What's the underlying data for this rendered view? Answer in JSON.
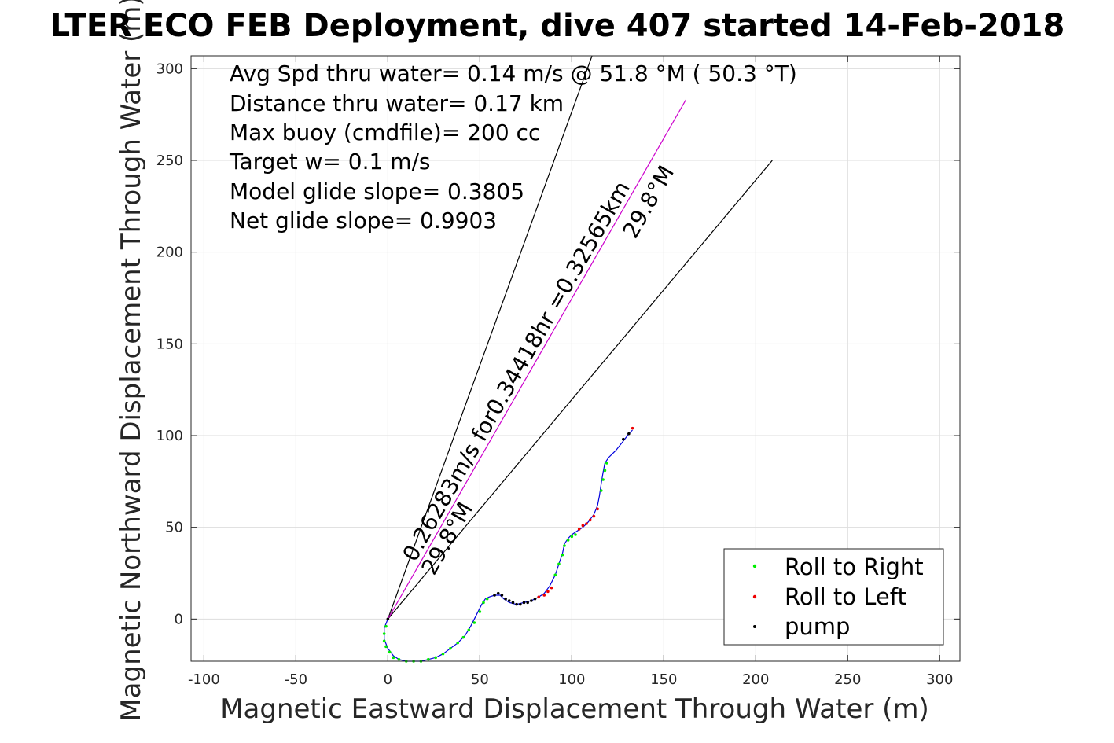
{
  "chart_data": {
    "type": "scatter",
    "title": "LTER ECO FEB Deployment, dive 407 started 14-Feb-2018",
    "xlabel": "Magnetic Eastward Displacement Through Water (m)",
    "ylabel": "Magnetic Northward Displacement Through Water (m)",
    "xlim": [
      -107,
      311
    ],
    "ylim": [
      -23,
      307
    ],
    "xticks": [
      -100,
      -50,
      0,
      50,
      100,
      150,
      200,
      250,
      300
    ],
    "yticks": [
      0,
      50,
      100,
      150,
      200,
      250,
      300
    ],
    "grid": true,
    "legend_position": "bottom-right",
    "annotations": [
      "Avg Spd thru water=  0.14 m/s @  51.8 °M ( 50.3 °T)",
      "Distance thru water=  0.17 km",
      "Max buoy (cmdfile)= 200 cc",
      "Target w= 0.1 m/s",
      "Model glide slope= 0.3805",
      "Net glide slope= 0.9903"
    ],
    "line_labels": {
      "heading_a": "29.8°M",
      "heading_b": "29.8°M",
      "speed_label": "0.26283m/s for0.34418hr =0.32565km"
    },
    "reference_lines": [
      {
        "from": [
          0,
          0
        ],
        "to": [
          111,
          307
        ],
        "color": "#000000"
      },
      {
        "from": [
          0,
          0
        ],
        "to": [
          209,
          250
        ],
        "color": "#000000"
      },
      {
        "from": [
          0,
          0
        ],
        "to": [
          162,
          283
        ],
        "color": "#cc00cc"
      }
    ],
    "track": {
      "x": [
        0,
        -2,
        -2,
        0,
        3,
        6,
        10,
        14,
        18,
        22,
        26,
        30,
        34,
        38,
        42,
        45,
        48,
        51,
        53,
        55,
        58,
        61,
        63,
        66,
        70,
        74,
        78,
        82,
        85,
        88,
        91,
        93,
        95,
        96,
        98,
        100,
        103,
        106,
        109,
        112,
        114,
        115,
        116,
        117,
        118,
        120,
        124,
        128,
        131,
        133
      ],
      "y": [
        0,
        -5,
        -11,
        -16,
        -20,
        -22,
        -23,
        -23,
        -23,
        -22,
        -21,
        -19,
        -16,
        -13,
        -9,
        -4,
        2,
        8,
        11,
        12,
        13,
        13,
        11,
        9,
        8,
        9,
        10,
        12,
        14,
        18,
        24,
        30,
        36,
        41,
        44,
        46,
        48,
        50,
        53,
        57,
        62,
        67,
        74,
        80,
        85,
        88,
        92,
        97,
        101,
        103
      ]
    },
    "legend": [
      {
        "name": "Roll to Right",
        "color": "#00ee00"
      },
      {
        "name": "Roll to Left",
        "color": "#ee0000"
      },
      {
        "name": "pump",
        "color": "#000000"
      }
    ],
    "series": [
      {
        "name": "Roll to Right",
        "color": "#00ee00",
        "x": [
          -1,
          -2,
          -2,
          -1,
          1,
          3,
          6,
          10,
          14,
          18,
          22,
          26,
          30,
          34,
          38,
          41,
          44,
          47,
          50,
          52,
          54,
          91,
          93,
          95,
          96,
          98,
          100,
          102,
          116,
          117,
          118,
          119
        ],
        "y": [
          -4,
          -8,
          -12,
          -15,
          -18,
          -21,
          -22,
          -23,
          -23,
          -23,
          -22,
          -21,
          -19,
          -16,
          -13,
          -10,
          -6,
          -2,
          4,
          9,
          11,
          24,
          30,
          35,
          40,
          43,
          45,
          46,
          70,
          76,
          81,
          85
        ]
      },
      {
        "name": "Roll to Left",
        "color": "#ee0000",
        "x": [
          82,
          85,
          87,
          89,
          104,
          106,
          108,
          110,
          112,
          114,
          133
        ],
        "y": [
          12,
          13,
          15,
          17,
          49,
          51,
          52,
          54,
          56,
          60,
          104
        ]
      },
      {
        "name": "pump",
        "color": "#000000",
        "x": [
          0,
          58,
          60,
          62,
          64,
          66,
          68,
          70,
          72,
          74,
          76,
          78,
          80,
          128,
          131
        ],
        "y": [
          0,
          13,
          14,
          13,
          11,
          10,
          9,
          8,
          8,
          9,
          9,
          10,
          11,
          98,
          101
        ]
      }
    ]
  }
}
